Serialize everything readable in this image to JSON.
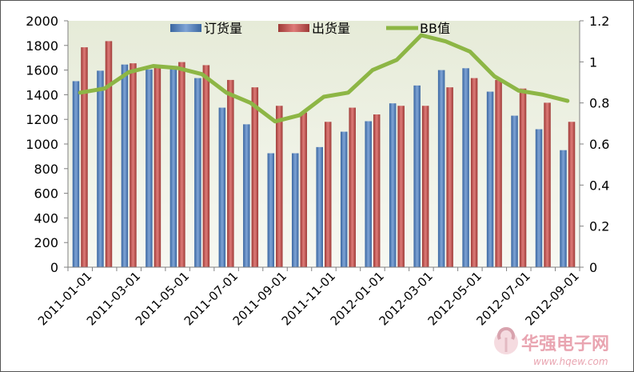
{
  "chart_data": {
    "type": "bar",
    "categories": [
      "2011-01",
      "2011-02",
      "2011-03",
      "2011-04",
      "2011-05",
      "2011-06",
      "2011-07",
      "2011-08",
      "2011-09",
      "2011-10",
      "2011-11",
      "2011-12",
      "2012-01",
      "2012-02",
      "2012-03",
      "2012-04",
      "2012-05",
      "2012-06",
      "2012-07",
      "2012-08",
      "2012-09"
    ],
    "x_tick_labels": [
      "2011-01-01",
      "2011-03-01",
      "2011-05-01",
      "2011-07-01",
      "2011-09-01",
      "2011-11-01",
      "2012-01-01",
      "2012-03-01",
      "2012-05-01",
      "2012-07-01",
      "2012-09-01"
    ],
    "series": [
      {
        "name": "订货量",
        "axis": "left",
        "kind": "bar",
        "color": "#4F81BD",
        "values": [
          1510,
          1595,
          1645,
          1605,
          1615,
          1535,
          1295,
          1160,
          925,
          925,
          975,
          1100,
          1185,
          1330,
          1475,
          1600,
          1615,
          1425,
          1230,
          1120,
          950
        ]
      },
      {
        "name": "出货量",
        "axis": "left",
        "kind": "bar",
        "color": "#C0504D",
        "values": [
          1785,
          1835,
          1655,
          1620,
          1665,
          1640,
          1520,
          1460,
          1310,
          1255,
          1180,
          1295,
          1240,
          1310,
          1310,
          1460,
          1535,
          1520,
          1450,
          1335,
          1180
        ]
      },
      {
        "name": "BB值",
        "axis": "right",
        "kind": "line",
        "color": "#8DB645",
        "values": [
          0.85,
          0.87,
          0.95,
          0.98,
          0.97,
          0.94,
          0.85,
          0.8,
          0.71,
          0.74,
          0.83,
          0.85,
          0.96,
          1.01,
          1.13,
          1.1,
          1.05,
          0.93,
          0.86,
          0.84,
          0.81
        ]
      }
    ],
    "y_left": {
      "min": 0,
      "max": 2000,
      "ticks": [
        "0",
        "200",
        "400",
        "600",
        "800",
        "1000",
        "1200",
        "1400",
        "1600",
        "1800",
        "2000"
      ]
    },
    "y_right": {
      "min": 0,
      "max": 1.2,
      "ticks": [
        "0",
        "0.2",
        "0.4",
        "0.6",
        "0.8",
        "1",
        "1.2"
      ]
    },
    "legend_position": "top",
    "grid": false,
    "plot_background": "#EDF0E4"
  },
  "watermark": {
    "brand": "华强电子网",
    "url": "www.hqew.com"
  }
}
